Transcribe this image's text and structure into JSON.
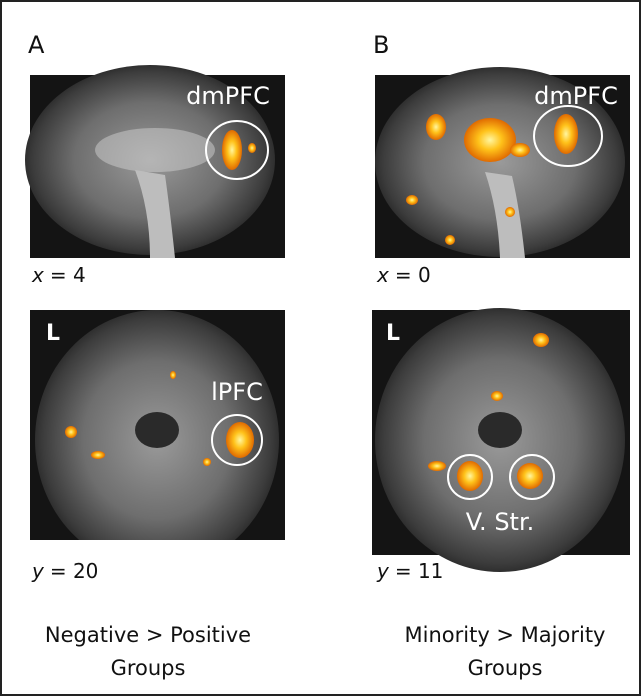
{
  "panels": [
    {
      "letter": "A",
      "caption": [
        "Negative > Positive",
        "Groups"
      ],
      "images": [
        {
          "labels": [
            "dmPFC"
          ],
          "coord": {
            "axis": "x",
            "rest": "= 4"
          }
        },
        {
          "labels": [
            "L",
            "lPFC"
          ],
          "coord": {
            "axis": "y",
            "rest": "= 20"
          }
        }
      ]
    },
    {
      "letter": "B",
      "caption": [
        "Minority > Majority",
        "Groups"
      ],
      "images": [
        {
          "labels": [
            "dmPFC"
          ],
          "coord": {
            "axis": "x",
            "rest": "= 0"
          }
        },
        {
          "labels": [
            "L",
            "V. Str."
          ],
          "coord": {
            "axis": "y",
            "rest": "= 11"
          }
        }
      ]
    }
  ]
}
